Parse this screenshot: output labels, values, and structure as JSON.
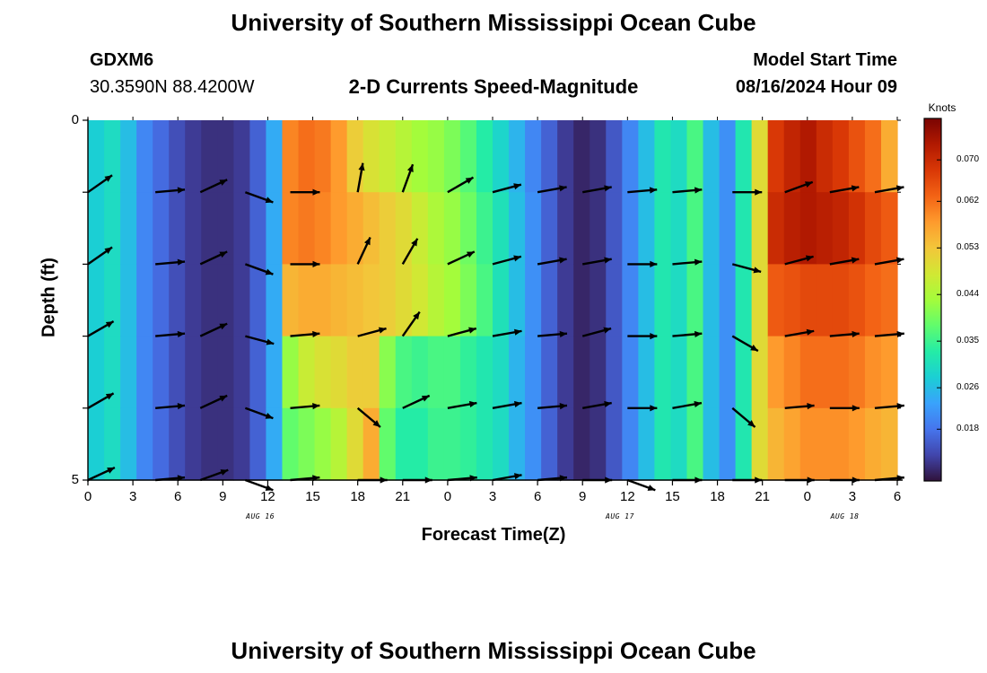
{
  "header": {
    "title": "University of Southern Mississippi Ocean Cube",
    "station": "GDXM6",
    "coords": "30.3590N  88.4200W",
    "plot_title": "2-D Currents Speed-Magnitude",
    "model_start_label": "Model Start Time",
    "model_start_value": "08/16/2024 Hour 09"
  },
  "footer": {
    "title": "University of Southern Mississippi Ocean Cube"
  },
  "chart_data": {
    "type": "heatmap",
    "xlabel": "Forecast Time(Z)",
    "ylabel": "Depth (ft)",
    "x_tick_labels": [
      "0",
      "3",
      "6",
      "9",
      "12",
      "15",
      "18",
      "21",
      "0",
      "3",
      "6",
      "9",
      "12",
      "15",
      "18",
      "21",
      "0",
      "3",
      "6"
    ],
    "x_hours": [
      0,
      3,
      6,
      9,
      12,
      15,
      18,
      21,
      24,
      27,
      30,
      33,
      36,
      39,
      42,
      45,
      48,
      51,
      54
    ],
    "xlim": [
      0,
      54
    ],
    "y_tick_labels": [
      "0",
      "5"
    ],
    "ylim": [
      0,
      5
    ],
    "date_labels": [
      {
        "text": "AUG 16",
        "hour": 11.5
      },
      {
        "text": "AUG 17",
        "hour": 35.5
      },
      {
        "text": "AUG 18",
        "hour": 50.5
      }
    ],
    "colorbar": {
      "title": "Knots",
      "ticks": [
        "0.018",
        "0.026",
        "0.035",
        "0.044",
        "0.053",
        "0.062",
        "0.070"
      ],
      "tick_values": [
        0.018,
        0.026,
        0.035,
        0.044,
        0.053,
        0.062,
        0.07
      ],
      "range": [
        0.008,
        0.078
      ],
      "colors": [
        "#30123b",
        "#4145ab",
        "#4675ed",
        "#39a2fc",
        "#1bcfd4",
        "#24eca6",
        "#61fc6c",
        "#a4fc3b",
        "#d1e834",
        "#f3c63a",
        "#fe9b2d",
        "#f36315",
        "#d93806",
        "#b11901",
        "#7a0402"
      ]
    },
    "speed_columns": [
      [
        0.028,
        0.028,
        0.028,
        0.028,
        0.028
      ],
      [
        0.03,
        0.03,
        0.03,
        0.03,
        0.03
      ],
      [
        0.026,
        0.026,
        0.026,
        0.026,
        0.026
      ],
      [
        0.02,
        0.02,
        0.02,
        0.02,
        0.02
      ],
      [
        0.017,
        0.017,
        0.017,
        0.017,
        0.017
      ],
      [
        0.014,
        0.014,
        0.014,
        0.014,
        0.014
      ],
      [
        0.012,
        0.012,
        0.012,
        0.012,
        0.012
      ],
      [
        0.011,
        0.011,
        0.011,
        0.011,
        0.011
      ],
      [
        0.011,
        0.011,
        0.011,
        0.011,
        0.011
      ],
      [
        0.012,
        0.012,
        0.012,
        0.012,
        0.012
      ],
      [
        0.016,
        0.016,
        0.016,
        0.016,
        0.016
      ],
      [
        0.024,
        0.024,
        0.024,
        0.024,
        0.024
      ],
      [
        0.06,
        0.06,
        0.055,
        0.042,
        0.038
      ],
      [
        0.062,
        0.061,
        0.056,
        0.047,
        0.04
      ],
      [
        0.061,
        0.06,
        0.056,
        0.049,
        0.042
      ],
      [
        0.058,
        0.058,
        0.055,
        0.05,
        0.045
      ],
      [
        0.052,
        0.056,
        0.054,
        0.052,
        0.05
      ],
      [
        0.049,
        0.054,
        0.053,
        0.052,
        0.056
      ],
      [
        0.047,
        0.052,
        0.052,
        0.041,
        0.038
      ],
      [
        0.045,
        0.05,
        0.05,
        0.036,
        0.033
      ],
      [
        0.043,
        0.047,
        0.048,
        0.035,
        0.033
      ],
      [
        0.042,
        0.044,
        0.045,
        0.036,
        0.035
      ],
      [
        0.04,
        0.042,
        0.043,
        0.036,
        0.035
      ],
      [
        0.037,
        0.039,
        0.04,
        0.034,
        0.034
      ],
      [
        0.033,
        0.035,
        0.036,
        0.032,
        0.032
      ],
      [
        0.029,
        0.031,
        0.031,
        0.03,
        0.03
      ],
      [
        0.025,
        0.026,
        0.026,
        0.025,
        0.025
      ],
      [
        0.02,
        0.021,
        0.021,
        0.021,
        0.021
      ],
      [
        0.016,
        0.016,
        0.016,
        0.016,
        0.016
      ],
      [
        0.012,
        0.012,
        0.012,
        0.012,
        0.012
      ],
      [
        0.01,
        0.01,
        0.01,
        0.01,
        0.01
      ],
      [
        0.011,
        0.011,
        0.011,
        0.011,
        0.011
      ],
      [
        0.015,
        0.015,
        0.015,
        0.015,
        0.015
      ],
      [
        0.02,
        0.02,
        0.02,
        0.02,
        0.02
      ],
      [
        0.026,
        0.026,
        0.026,
        0.026,
        0.026
      ],
      [
        0.032,
        0.032,
        0.032,
        0.032,
        0.032
      ],
      [
        0.03,
        0.03,
        0.03,
        0.03,
        0.03
      ],
      [
        0.036,
        0.036,
        0.036,
        0.036,
        0.036
      ],
      [
        0.026,
        0.026,
        0.026,
        0.026,
        0.026
      ],
      [
        0.021,
        0.021,
        0.021,
        0.021,
        0.021
      ],
      [
        0.032,
        0.032,
        0.032,
        0.032,
        0.032
      ],
      [
        0.05,
        0.05,
        0.05,
        0.05,
        0.05
      ],
      [
        0.068,
        0.07,
        0.064,
        0.058,
        0.055
      ],
      [
        0.071,
        0.072,
        0.065,
        0.06,
        0.057
      ],
      [
        0.073,
        0.073,
        0.066,
        0.062,
        0.059
      ],
      [
        0.07,
        0.072,
        0.066,
        0.062,
        0.059
      ],
      [
        0.068,
        0.071,
        0.066,
        0.062,
        0.059
      ],
      [
        0.065,
        0.069,
        0.065,
        0.061,
        0.058
      ],
      [
        0.062,
        0.066,
        0.063,
        0.059,
        0.056
      ],
      [
        0.056,
        0.064,
        0.062,
        0.058,
        0.055
      ]
    ],
    "vector_depths": [
      1,
      2,
      3,
      4,
      5
    ],
    "vector_times": [
      0,
      4.5,
      7.5,
      10.5,
      13.5,
      18,
      21,
      24,
      27,
      30,
      33,
      36,
      39,
      43,
      46.5,
      49.5,
      52.5
    ],
    "vector_directions_deg": [
      [
        35,
        5,
        25,
        340,
        0,
        80,
        70,
        30,
        15,
        10,
        10,
        5,
        5,
        0,
        20,
        10,
        10
      ],
      [
        35,
        5,
        25,
        340,
        0,
        65,
        60,
        25,
        15,
        10,
        10,
        0,
        5,
        345,
        15,
        10,
        10
      ],
      [
        30,
        5,
        25,
        345,
        5,
        15,
        55,
        15,
        10,
        5,
        15,
        0,
        5,
        330,
        10,
        5,
        5
      ],
      [
        30,
        5,
        25,
        340,
        5,
        320,
        25,
        10,
        10,
        5,
        10,
        0,
        10,
        320,
        5,
        0,
        5
      ],
      [
        25,
        5,
        20,
        340,
        5,
        0,
        0,
        5,
        10,
        5,
        0,
        340,
        0,
        0,
        0,
        0,
        5
      ]
    ]
  }
}
